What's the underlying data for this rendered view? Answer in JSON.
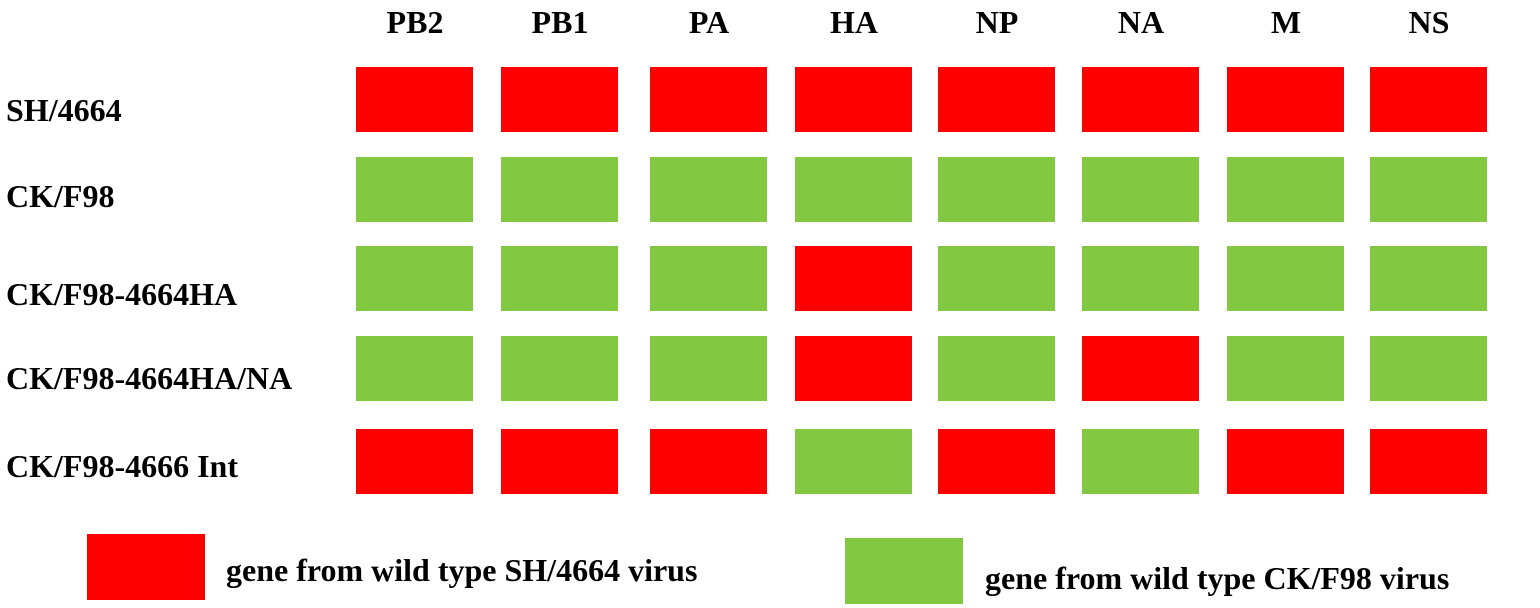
{
  "colors": {
    "SH": "#ff0000",
    "CK": "#82c841"
  },
  "genes": [
    "PB2",
    "PB1",
    "PA",
    "HA",
    "NP",
    "NA",
    "M",
    "NS"
  ],
  "rows": [
    {
      "label": "SH/4664",
      "origins": [
        "SH",
        "SH",
        "SH",
        "SH",
        "SH",
        "SH",
        "SH",
        "SH"
      ]
    },
    {
      "label": "CK/F98",
      "origins": [
        "CK",
        "CK",
        "CK",
        "CK",
        "CK",
        "CK",
        "CK",
        "CK"
      ]
    },
    {
      "label": "CK/F98-4664HA",
      "origins": [
        "CK",
        "CK",
        "CK",
        "SH",
        "CK",
        "CK",
        "CK",
        "CK"
      ]
    },
    {
      "label": "CK/F98-4664HA/NA",
      "origins": [
        "CK",
        "CK",
        "CK",
        "SH",
        "CK",
        "SH",
        "CK",
        "CK"
      ]
    },
    {
      "label": "CK/F98-4666 Int",
      "origins": [
        "SH",
        "SH",
        "SH",
        "CK",
        "SH",
        "CK",
        "SH",
        "SH"
      ]
    }
  ],
  "legend": [
    {
      "origin": "SH",
      "label": "gene from wild type SH/4664 virus"
    },
    {
      "origin": "CK",
      "label": "gene from wild type CK/F98 virus"
    }
  ]
}
